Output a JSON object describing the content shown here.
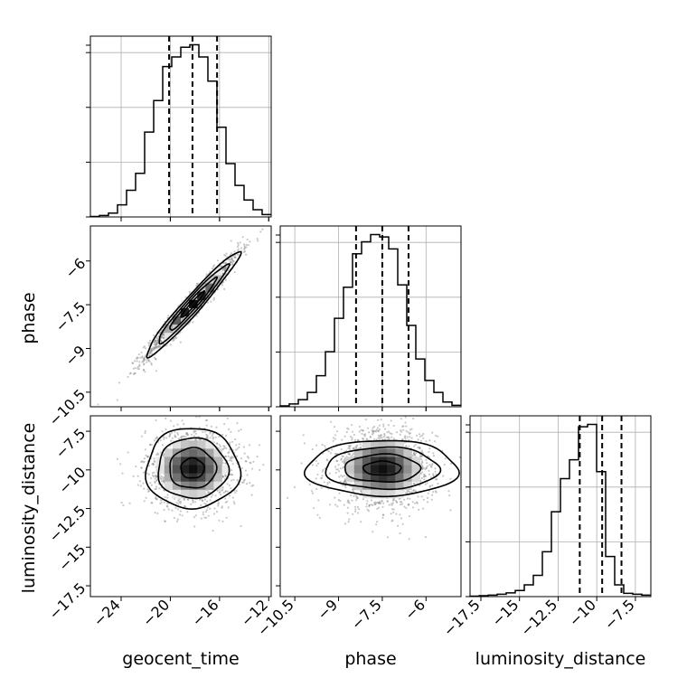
{
  "chart_data": {
    "type": "corner",
    "parameters": [
      {
        "name": "geocent_time",
        "range": [
          -26.5,
          -11.8
        ],
        "ticks": [
          -24,
          -20,
          -16,
          -12
        ],
        "hist_x0": -26.5,
        "hist_bin": 0.735,
        "hist": [
          0.1,
          0.3,
          0.8,
          2.5,
          5.5,
          9,
          17.5,
          24,
          31,
          33,
          35,
          35.5,
          33,
          28,
          18.5,
          11,
          6.5,
          3.5,
          1.5,
          0.5
        ],
        "quantiles": [
          -20.1,
          -18.2,
          -16.2
        ]
      },
      {
        "name": "phase",
        "range": [
          -11.0,
          -4.8
        ],
        "ticks": [
          -10.5,
          -9.0,
          -7.5,
          -6.0
        ],
        "hist_x0": -11.0,
        "hist_bin": 0.31,
        "hist": [
          0.2,
          0.6,
          1.5,
          3,
          6.5,
          11.5,
          18.5,
          25,
          32,
          34.5,
          36,
          35.5,
          33,
          25.5,
          17,
          10,
          5.5,
          3,
          1,
          0.3
        ],
        "quantiles": [
          -8.4,
          -7.5,
          -6.6
        ]
      },
      {
        "name": "luminosity_distance",
        "range": [
          -18.2,
          -6.5
        ],
        "ticks": [
          -17.5,
          -15.0,
          -12.5,
          -10.0,
          -7.5
        ],
        "hist_x0": -18.2,
        "hist_bin": 0.585,
        "hist": [
          0.1,
          0.2,
          0.3,
          0.5,
          0.8,
          1.3,
          2.5,
          4.5,
          9.5,
          18,
          25,
          29,
          36,
          36.5,
          26.5,
          8.5,
          2.5,
          0.7,
          0.5,
          0.3
        ],
        "quantiles": [
          -11.1,
          -9.65,
          -8.4
        ]
      }
    ],
    "pairs": [
      {
        "x": "geocent_time",
        "y": "phase",
        "center": [
          -18.2,
          -7.5
        ],
        "sigma": [
          1.9,
          0.9
        ],
        "correlation": 0.97
      },
      {
        "x": "geocent_time",
        "y": "luminosity_distance",
        "center": [
          -18.2,
          -9.9
        ],
        "sigma": [
          1.9,
          1.3
        ],
        "correlation": 0.0
      },
      {
        "x": "phase",
        "y": "luminosity_distance",
        "center": [
          -7.5,
          -9.9
        ],
        "sigma": [
          0.9,
          1.3
        ],
        "correlation": 0.0
      }
    ],
    "contour_levels_sigma": [
      0.5,
      1.0,
      1.5,
      2.0
    ],
    "grid": true
  }
}
